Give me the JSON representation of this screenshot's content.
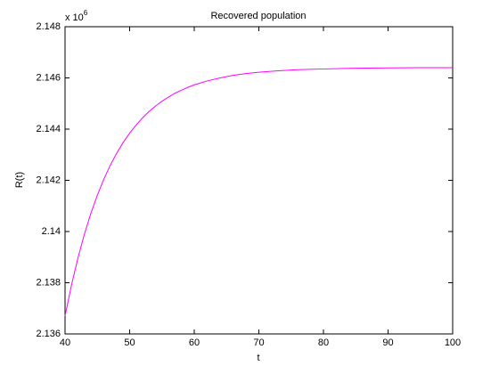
{
  "chart_data": {
    "type": "line",
    "title": "Recovered population",
    "x_label": "t",
    "y_label": "R(t)",
    "y_multiplier": {
      "base": "x 10",
      "exponent": "6"
    },
    "x": [
      40,
      41,
      42,
      43,
      44,
      45,
      46,
      47,
      48,
      49,
      50,
      51,
      52,
      53,
      54,
      55,
      56,
      57,
      58,
      59,
      60,
      62,
      64,
      66,
      68,
      70,
      73,
      76,
      80,
      85,
      90,
      95,
      100
    ],
    "series": [
      {
        "name": "R(t)",
        "color": "#ff00ff",
        "values": [
          2.1367,
          2.13791,
          2.13897,
          2.1399,
          2.14071,
          2.14142,
          2.14204,
          2.14259,
          2.14306,
          2.14348,
          2.14384,
          2.14416,
          2.14444,
          2.14469,
          2.1449,
          2.14509,
          2.14525,
          2.1454,
          2.14552,
          2.14563,
          2.14573,
          2.14588,
          2.146,
          2.1461,
          2.14617,
          2.14622,
          2.14628,
          2.14632,
          2.14635,
          2.14638,
          2.14639,
          2.1464,
          2.1464
        ]
      }
    ],
    "xlim": [
      40,
      100
    ],
    "xticks": [
      40,
      50,
      60,
      70,
      80,
      90,
      100
    ],
    "ylim": [
      2.136,
      2.148
    ],
    "yticks": [
      2.136,
      2.138,
      2.14,
      2.142,
      2.144,
      2.146,
      2.148
    ],
    "grid": false
  }
}
